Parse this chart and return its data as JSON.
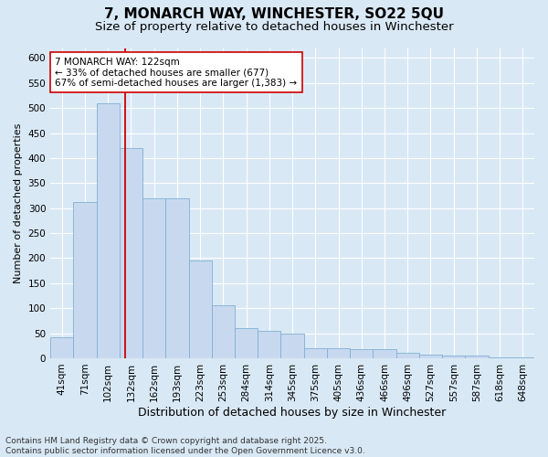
{
  "title_line1": "7, MONARCH WAY, WINCHESTER, SO22 5QU",
  "title_line2": "Size of property relative to detached houses in Winchester",
  "xlabel": "Distribution of detached houses by size in Winchester",
  "ylabel": "Number of detached properties",
  "categories": [
    "41sqm",
    "71sqm",
    "102sqm",
    "132sqm",
    "162sqm",
    "193sqm",
    "223sqm",
    "253sqm",
    "284sqm",
    "314sqm",
    "345sqm",
    "375sqm",
    "405sqm",
    "436sqm",
    "466sqm",
    "496sqm",
    "527sqm",
    "557sqm",
    "587sqm",
    "618sqm",
    "648sqm"
  ],
  "values": [
    42,
    312,
    510,
    420,
    320,
    320,
    195,
    105,
    60,
    55,
    50,
    20,
    20,
    18,
    18,
    10,
    8,
    5,
    5,
    2,
    2
  ],
  "bar_color": "#c8d9ef",
  "bar_edge_color": "#7fafd4",
  "vline_color": "#cc0000",
  "vline_position": 2.73,
  "annotation_text": "7 MONARCH WAY: 122sqm\n← 33% of detached houses are smaller (677)\n67% of semi-detached houses are larger (1,383) →",
  "annotation_box_facecolor": "#ffffff",
  "annotation_box_edgecolor": "#cc0000",
  "ylim": [
    0,
    620
  ],
  "yticks": [
    0,
    50,
    100,
    150,
    200,
    250,
    300,
    350,
    400,
    450,
    500,
    550,
    600
  ],
  "background_color": "#d9e8f5",
  "footer_text": "Contains HM Land Registry data © Crown copyright and database right 2025.\nContains public sector information licensed under the Open Government Licence v3.0.",
  "title_fontsize": 11,
  "subtitle_fontsize": 9.5,
  "xlabel_fontsize": 9,
  "ylabel_fontsize": 8,
  "tick_fontsize": 7.5,
  "footer_fontsize": 6.5,
  "annotation_fontsize": 7.5
}
